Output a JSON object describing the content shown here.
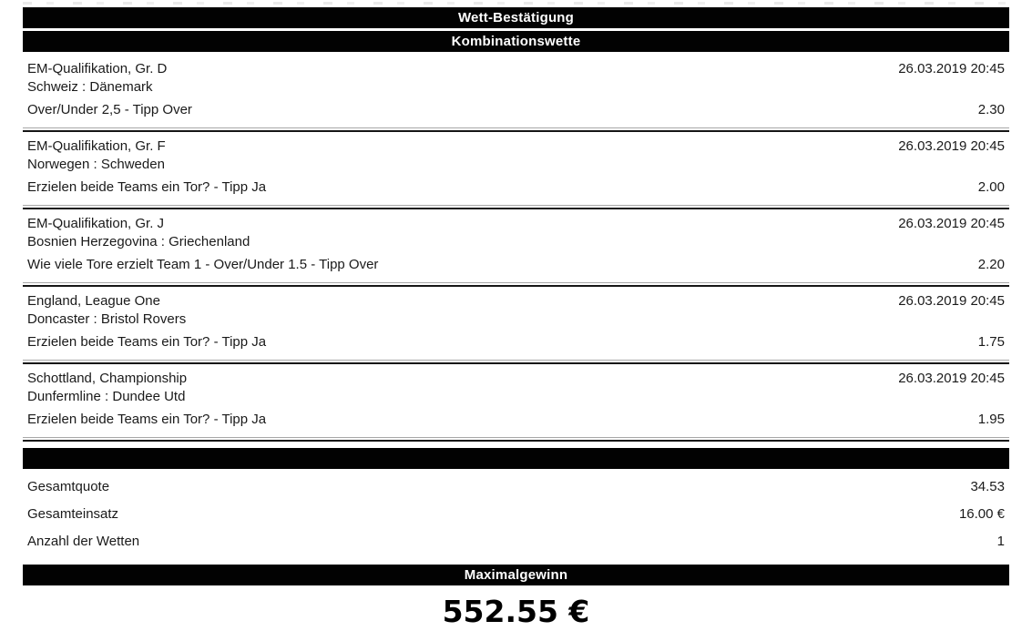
{
  "page": {
    "title_bar": "Wett-Bestätigung",
    "type_bar": "Kombinationswette"
  },
  "bets": [
    {
      "league": "EM-Qualifikation, Gr. D",
      "match": "Schweiz : Dänemark",
      "market": "Over/Under 2,5 - Tipp Over",
      "datetime": "26.03.2019 20:45",
      "odds": "2.30"
    },
    {
      "league": "EM-Qualifikation, Gr. F",
      "match": "Norwegen : Schweden",
      "market": "Erzielen beide Teams ein Tor? - Tipp Ja",
      "datetime": "26.03.2019 20:45",
      "odds": "2.00"
    },
    {
      "league": "EM-Qualifikation, Gr. J",
      "match": "Bosnien Herzegovina : Griechenland",
      "market": "Wie viele Tore erzielt Team 1 - Over/Under 1.5 - Tipp Over",
      "datetime": "26.03.2019 20:45",
      "odds": "2.20"
    },
    {
      "league": "England, League One",
      "match": "Doncaster : Bristol Rovers",
      "market": "Erzielen beide Teams ein Tor? - Tipp Ja",
      "datetime": "26.03.2019 20:45",
      "odds": "1.75"
    },
    {
      "league": "Schottland, Championship",
      "match": "Dunfermline : Dundee Utd",
      "market": "Erzielen beide Teams ein Tor? - Tipp Ja",
      "datetime": "26.03.2019 20:45",
      "odds": "1.95"
    }
  ],
  "summary": {
    "rows": [
      {
        "label": "Gesamtquote",
        "value": "34.53"
      },
      {
        "label": "Gesamteinsatz",
        "value": "16.00 €"
      },
      {
        "label": "Anzahl der Wetten",
        "value": "1"
      }
    ],
    "max_win_bar": "Maximalgewinn",
    "max_win_value": "552.55 €"
  },
  "colors": {
    "bar_background": "#020202",
    "bar_text": "#ffffff",
    "body_text": "#1a1a1a",
    "rule_dark": "#161616",
    "rule_light": "#a8a8a8"
  }
}
